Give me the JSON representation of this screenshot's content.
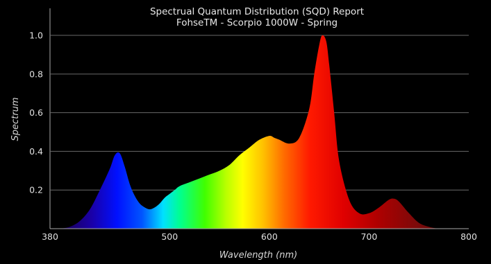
{
  "chart_data": {
    "type": "area",
    "title": "Spectrual Quantum Distribution (SQD) Report",
    "subtitle": "FohseTM - Scorpio 1000W - Spring",
    "xlabel": "Wavelength (nm)",
    "ylabel": "Spectrum",
    "xlim": [
      380,
      800
    ],
    "ylim": [
      0,
      1.14
    ],
    "x_ticks": [
      380,
      500,
      600,
      700,
      800
    ],
    "y_ticks": [
      0.2,
      0.4,
      0.6,
      0.8,
      1.0
    ],
    "y_tick_labels": [
      "0.2",
      "0.4",
      "0.6",
      "0.8",
      "1.0"
    ],
    "grid": "horizontal",
    "background": "#000000",
    "fill": "wavelength-color gradient",
    "series": [
      {
        "x": [
          390,
          400,
          410,
          420,
          430,
          440,
          445,
          450,
          455,
          460,
          465,
          470,
          475,
          480,
          485,
          490,
          495,
          500,
          505,
          510,
          520,
          530,
          540,
          550,
          560,
          570,
          580,
          590,
          600,
          605,
          610,
          620,
          630,
          640,
          645,
          650,
          653,
          657,
          660,
          665,
          670,
          680,
          690,
          700,
          710,
          720,
          725,
          730,
          740,
          750,
          760,
          770,
          780
        ],
        "y": [
          0.0,
          0.01,
          0.04,
          0.1,
          0.2,
          0.31,
          0.38,
          0.39,
          0.32,
          0.23,
          0.17,
          0.13,
          0.11,
          0.1,
          0.11,
          0.13,
          0.16,
          0.18,
          0.2,
          0.22,
          0.24,
          0.26,
          0.28,
          0.3,
          0.33,
          0.38,
          0.42,
          0.46,
          0.48,
          0.47,
          0.46,
          0.44,
          0.47,
          0.62,
          0.8,
          0.95,
          1.0,
          0.97,
          0.85,
          0.6,
          0.35,
          0.15,
          0.08,
          0.08,
          0.11,
          0.15,
          0.155,
          0.14,
          0.08,
          0.03,
          0.01,
          0.0,
          0.0
        ]
      }
    ]
  }
}
